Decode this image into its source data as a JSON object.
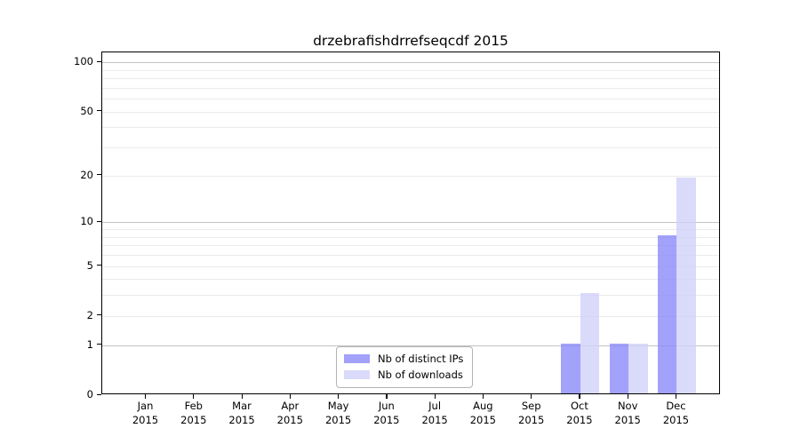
{
  "chart_data": {
    "type": "bar",
    "title": "drzebrafishdrrefseqcdf 2015",
    "categories": [
      "Jan",
      "Feb",
      "Mar",
      "Apr",
      "May",
      "Jun",
      "Jul",
      "Aug",
      "Sep",
      "Oct",
      "Nov",
      "Dec"
    ],
    "x_tick_year": "2015",
    "series": [
      {
        "name": "Nb of distinct IPs",
        "color": "#8b8bf9",
        "alpha": 0.8,
        "values": [
          0,
          0,
          0,
          0,
          0,
          0,
          0,
          0,
          0,
          1,
          1,
          8
        ]
      },
      {
        "name": "Nb of downloads",
        "color": "#d1d1f9",
        "alpha": 0.8,
        "values": [
          0,
          0,
          0,
          0,
          0,
          0,
          0,
          0,
          0,
          3,
          1,
          19
        ]
      }
    ],
    "xlabel": "",
    "ylabel": "",
    "yscale": "log1p",
    "ylim": [
      0,
      115
    ],
    "y_tick_labels": [
      0,
      1,
      2,
      5,
      10,
      20,
      50,
      100
    ],
    "y_major_gridlines": [
      1,
      10,
      100
    ],
    "y_minor_gridlines": [
      2,
      3,
      4,
      5,
      6,
      7,
      8,
      9,
      20,
      30,
      40,
      50,
      60,
      70,
      80,
      90
    ],
    "grid": "horizontal",
    "legend_location": "lower center inside"
  },
  "colors": {
    "background": "#ffffff",
    "spine": "#000000",
    "text": "#000000",
    "major_grid": "#c3c3c3",
    "minor_grid": "#ebebeb",
    "legend_border": "#b4b4b4",
    "legend_background": "#ffffff"
  }
}
